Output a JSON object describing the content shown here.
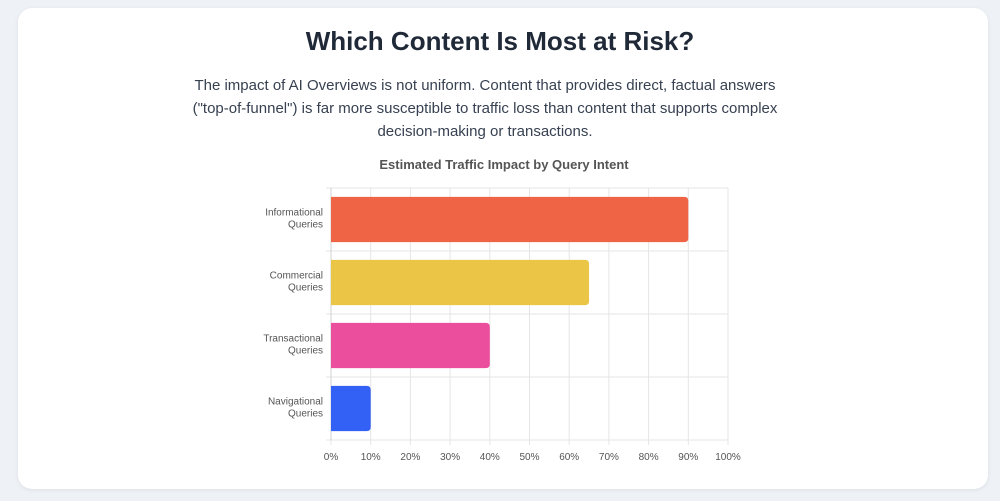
{
  "header": {
    "title": "Which Content Is Most at Risk?",
    "description": "The impact of AI Overviews is not uniform. Content that provides direct, factual answers (\"top-of-funnel\") is far more susceptible to traffic loss than content that supports complex decision-making or transactions."
  },
  "chart_data": {
    "type": "bar",
    "orientation": "horizontal",
    "title": "Estimated Traffic Impact by Query Intent",
    "categories": [
      [
        "Informational",
        "Queries"
      ],
      [
        "Commercial",
        "Queries"
      ],
      [
        "Transactional",
        "Queries"
      ],
      [
        "Navigational",
        "Queries"
      ]
    ],
    "values": [
      90,
      65,
      40,
      10
    ],
    "colors": [
      "#ee6445",
      "#eac546",
      "#ec4e9e",
      "#3461f5"
    ],
    "xlim": [
      0,
      100
    ],
    "xticks": [
      "0%",
      "10%",
      "20%",
      "30%",
      "40%",
      "50%",
      "60%",
      "70%",
      "80%",
      "90%",
      "100%"
    ],
    "grid": true,
    "legend": "none"
  }
}
